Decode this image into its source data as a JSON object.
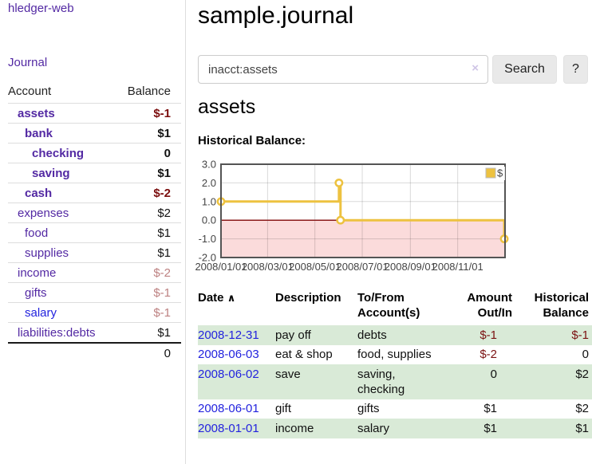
{
  "app": {
    "title": "hledger-web"
  },
  "sidebar": {
    "journal_link": "Journal",
    "accounts": {
      "col_account": "Account",
      "col_balance": "Balance",
      "rows": [
        {
          "name": "assets",
          "balance": "$-1",
          "indent": 0,
          "bold": true,
          "balance_class": "neg-strong"
        },
        {
          "name": "bank",
          "balance": "$1",
          "indent": 1,
          "bold": true,
          "balance_class": ""
        },
        {
          "name": "checking",
          "balance": "0",
          "indent": 2,
          "bold": true,
          "balance_class": ""
        },
        {
          "name": "saving",
          "balance": "$1",
          "indent": 2,
          "bold": true,
          "balance_class": ""
        },
        {
          "name": "cash",
          "balance": "$-2",
          "indent": 1,
          "bold": true,
          "balance_class": "neg-strong"
        },
        {
          "name": "expenses",
          "balance": "$2",
          "indent": 0,
          "bold": false,
          "balance_class": ""
        },
        {
          "name": "food",
          "balance": "$1",
          "indent": 1,
          "bold": false,
          "balance_class": ""
        },
        {
          "name": "supplies",
          "balance": "$1",
          "indent": 1,
          "bold": false,
          "balance_class": ""
        },
        {
          "name": "income",
          "balance": "$-2",
          "indent": 0,
          "bold": false,
          "balance_class": "neg-soft"
        },
        {
          "name": "gifts",
          "balance": "$-1",
          "indent": 1,
          "bold": false,
          "balance_class": "neg-soft"
        },
        {
          "name": "salary",
          "balance": "$-1",
          "indent": 1,
          "bold": false,
          "balance_class": "neg-soft",
          "link_unvisited": true
        },
        {
          "name": "liabilities:debts",
          "balance": "$1",
          "indent": 0,
          "bold": false,
          "balance_class": ""
        }
      ],
      "total": "0"
    }
  },
  "main": {
    "title": "sample.journal",
    "search": {
      "value": "inacct:assets",
      "clear_icon": "×",
      "button": "Search",
      "help_button": "?"
    },
    "account_heading": "assets",
    "chart_heading": "Historical Balance:"
  },
  "chart_data": {
    "type": "line",
    "step": true,
    "title": "Historical Balance",
    "x_range": [
      "2008-01-01",
      "2009-01-01"
    ],
    "ylim": [
      -2,
      3
    ],
    "yticks": [
      "3.0",
      "2.0",
      "1.0",
      "0.0",
      "-1.0",
      "-2.0"
    ],
    "xticks": [
      {
        "date": "2008-01-01",
        "label": "2008/01/01"
      },
      {
        "date": "2008-03-01",
        "label": "2008/03/01"
      },
      {
        "date": "2008-05-01",
        "label": "2008/05/01"
      },
      {
        "date": "2008-07-01",
        "label": "2008/07/01"
      },
      {
        "date": "2008-09-01",
        "label": "2008/09/01"
      },
      {
        "date": "2008-11-01",
        "label": "2008/11/01"
      }
    ],
    "series": [
      {
        "name": "$",
        "color": "#EDC240",
        "points": [
          {
            "date": "2008-01-01",
            "value": 1
          },
          {
            "date": "2008-06-01",
            "value": 2
          },
          {
            "date": "2008-06-03",
            "value": 0
          },
          {
            "date": "2008-12-31",
            "value": -1
          }
        ]
      }
    ],
    "legend": {
      "label": "$",
      "position": "top-right"
    },
    "grid": true,
    "negative_region_color": "#FBDBDB",
    "zero_line_color": "#8B1A1A",
    "border_color": "#545454"
  },
  "register": {
    "columns": {
      "date": "Date",
      "date_sort_icon": "∧",
      "description": "Description",
      "accounts_line1": "To/From",
      "accounts_line2": "Account(s)",
      "amount_line1": "Amount",
      "amount_line2": "Out/In",
      "balance_line1": "Historical",
      "balance_line2": "Balance"
    },
    "rows": [
      {
        "date": "2008-12-31",
        "description": "pay off",
        "accounts": "debts",
        "amount": "$-1",
        "balance": "$-1",
        "amount_negative": true,
        "balance_negative": true
      },
      {
        "date": "2008-06-03",
        "description": "eat & shop",
        "accounts": "food, supplies",
        "amount": "$-2",
        "balance": "0",
        "amount_negative": true,
        "balance_negative": false
      },
      {
        "date": "2008-06-02",
        "description": "save",
        "accounts": "saving, checking",
        "amount": "0",
        "balance": "$2",
        "amount_negative": false,
        "balance_negative": false
      },
      {
        "date": "2008-06-01",
        "description": "gift",
        "accounts": "gifts",
        "amount": "$1",
        "balance": "$2",
        "amount_negative": false,
        "balance_negative": false
      },
      {
        "date": "2008-01-01",
        "description": "income",
        "accounts": "salary",
        "amount": "$1",
        "balance": "$1",
        "amount_negative": false,
        "balance_negative": false
      }
    ]
  },
  "colors": {
    "link_purple": "#5329A3",
    "link_blue": "#2323DE",
    "negative_strong": "#7B0D0D",
    "negative_soft": "#BD8181",
    "table_stripe_green": "#D9EAD7",
    "series_gold": "#EDC240"
  }
}
